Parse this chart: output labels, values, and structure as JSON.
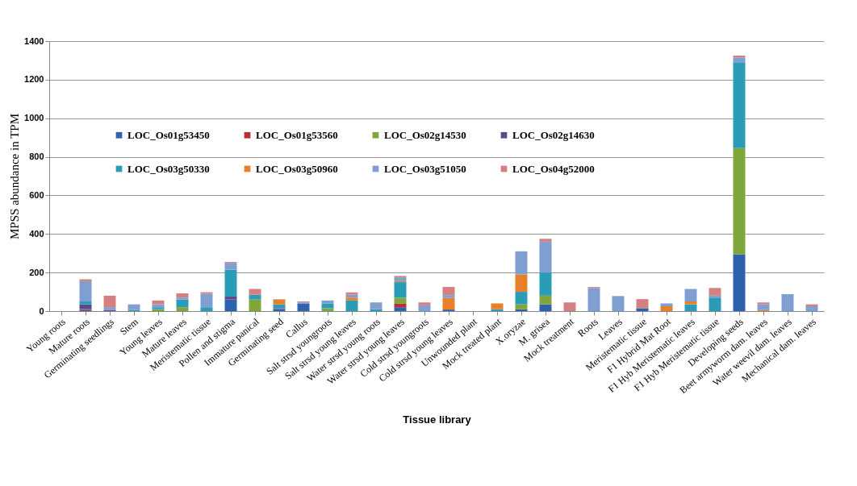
{
  "chart_data": {
    "type": "bar",
    "stacked": true,
    "xlabel": "Tissue library",
    "ylabel": "MPSS abundance in TPM",
    "categories": [
      "Young roots",
      "Mature roots",
      "Germinating seedlings",
      "Stem",
      "Young leaves",
      "Mature leaves",
      "Meristematic tissue",
      "Pollen and stigma",
      "Immature panical",
      "Germinating seed",
      "Callus",
      "Salt strsd youngroots",
      "Salt strsd young leaves",
      "Water strsd young roots",
      "Water strsd young leaves",
      "Cold strsd youngroots",
      "Cold strsd young leaves",
      "Unwounded plant",
      "Mock treated plant",
      "X.oryzae",
      "M. grisea",
      "Mock treatment",
      "Roots",
      "Leaves",
      "Meristematic tissue",
      "F1 Hybrid Mat Root",
      "F1 Hyb Meristematic leaves",
      "F1 Hyb Meristematic tissue",
      "Developing seeds",
      "Beet armyworm dam. leaves",
      "Water weevil dam. leaves",
      "Mechanical dam. leaves"
    ],
    "series": [
      {
        "name": "LOC_Os01g53450",
        "color": "#2f62ad",
        "values": [
          0,
          5,
          0,
          0,
          0,
          0,
          0,
          60,
          0,
          10,
          40,
          0,
          0,
          0,
          20,
          0,
          8,
          0,
          0,
          10,
          35,
          0,
          0,
          0,
          15,
          0,
          0,
          0,
          295,
          0,
          0,
          0
        ]
      },
      {
        "name": "LOC_Os01g53560",
        "color": "#b83232",
        "values": [
          0,
          5,
          0,
          0,
          0,
          0,
          0,
          0,
          0,
          0,
          0,
          0,
          0,
          0,
          20,
          0,
          0,
          0,
          0,
          0,
          0,
          0,
          0,
          0,
          0,
          0,
          0,
          0,
          0,
          0,
          0,
          0
        ]
      },
      {
        "name": "LOC_Os02g14530",
        "color": "#7ea63a",
        "values": [
          0,
          0,
          0,
          0,
          10,
          20,
          0,
          0,
          60,
          0,
          0,
          15,
          0,
          0,
          30,
          0,
          0,
          0,
          0,
          25,
          45,
          0,
          0,
          0,
          0,
          0,
          0,
          0,
          550,
          0,
          0,
          0
        ]
      },
      {
        "name": "LOC_Os02g14630",
        "color": "#5b4a8b",
        "values": [
          0,
          25,
          5,
          0,
          0,
          0,
          0,
          15,
          0,
          5,
          0,
          0,
          0,
          0,
          0,
          0,
          0,
          0,
          0,
          0,
          0,
          0,
          0,
          0,
          0,
          0,
          0,
          0,
          0,
          0,
          0,
          0
        ]
      },
      {
        "name": "LOC_Os03g50330",
        "color": "#2a9cb8",
        "values": [
          0,
          15,
          0,
          5,
          10,
          40,
          20,
          140,
          25,
          20,
          0,
          25,
          55,
          10,
          80,
          0,
          0,
          0,
          10,
          65,
          120,
          0,
          0,
          0,
          0,
          0,
          35,
          70,
          445,
          0,
          0,
          0
        ]
      },
      {
        "name": "LOC_Os03g50960",
        "color": "#e8802a",
        "values": [
          0,
          0,
          0,
          0,
          0,
          0,
          0,
          0,
          0,
          25,
          0,
          0,
          15,
          0,
          5,
          0,
          60,
          0,
          30,
          90,
          0,
          0,
          0,
          0,
          0,
          25,
          15,
          0,
          0,
          5,
          0,
          0
        ]
      },
      {
        "name": "LOC_Os03g51050",
        "color": "#7f9fd0",
        "values": [
          0,
          105,
          15,
          30,
          15,
          10,
          70,
          35,
          0,
          0,
          5,
          15,
          15,
          35,
          20,
          30,
          15,
          0,
          0,
          120,
          160,
          0,
          120,
          78,
          0,
          15,
          65,
          10,
          25,
          30,
          88,
          25
        ]
      },
      {
        "name": "LOC_Os04g52000",
        "color": "#d48080",
        "values": [
          0,
          10,
          60,
          0,
          20,
          22,
          8,
          5,
          30,
          2,
          5,
          0,
          12,
          0,
          7,
          15,
          42,
          0,
          0,
          0,
          15,
          45,
          5,
          0,
          47,
          0,
          0,
          40,
          10,
          10,
          0,
          10
        ]
      }
    ],
    "ylim": [
      0,
      1400
    ],
    "yticks": [
      0,
      200,
      400,
      600,
      800,
      1000,
      1200,
      1400
    ],
    "grid": "y",
    "legend": "top left"
  }
}
